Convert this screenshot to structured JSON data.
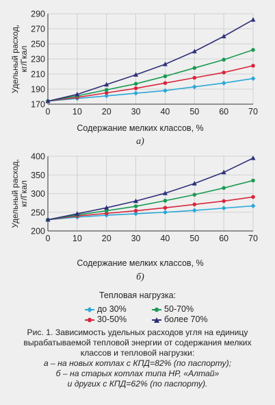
{
  "chart_data": [
    {
      "type": "line",
      "x": [
        0,
        10,
        20,
        30,
        40,
        50,
        60,
        70
      ],
      "xlabel": "Содержание мелких классов, %",
      "ylabel": "Удельный расход, кг/Гкал",
      "ylim": [
        170,
        290
      ],
      "yticks": [
        170,
        190,
        210,
        230,
        250,
        270,
        290
      ],
      "subtitle": "а)",
      "grid": true,
      "series": [
        {
          "name": "до 30%",
          "color": "#2aa7d8",
          "marker": "diamond",
          "values": [
            174,
            177.5,
            181,
            184.5,
            188,
            193,
            198,
            204
          ]
        },
        {
          "name": "30-50%",
          "color": "#d7263d",
          "marker": "circle",
          "values": [
            174,
            179,
            185,
            191,
            198,
            205,
            212,
            221
          ]
        },
        {
          "name": "50-70%",
          "color": "#1a9a52",
          "marker": "circle",
          "values": [
            174,
            181,
            189,
            197,
            207,
            218,
            229,
            242
          ]
        },
        {
          "name": "более 70%",
          "color": "#2e2f7a",
          "marker": "triangle",
          "values": [
            174,
            183,
            196,
            209,
            223,
            240,
            260,
            282
          ]
        }
      ]
    },
    {
      "type": "line",
      "x": [
        0,
        10,
        20,
        30,
        40,
        50,
        60,
        70
      ],
      "xlabel": "Содержание мелких классов, %",
      "ylabel": "Удельный расход, кг/Гкал",
      "ylim": [
        200,
        400
      ],
      "yticks": [
        200,
        250,
        300,
        350,
        400
      ],
      "subtitle": "б)",
      "grid": true,
      "series": [
        {
          "name": "до 30%",
          "color": "#2aa7d8",
          "marker": "diamond",
          "values": [
            230,
            237,
            242,
            246,
            250,
            255,
            261,
            267
          ]
        },
        {
          "name": "30-50%",
          "color": "#d7263d",
          "marker": "circle",
          "values": [
            230,
            240,
            247,
            254,
            262,
            271,
            280,
            291
          ]
        },
        {
          "name": "50-70%",
          "color": "#1a9a52",
          "marker": "circle",
          "values": [
            230,
            243,
            254,
            266,
            281,
            297,
            315,
            335
          ]
        },
        {
          "name": "более 70%",
          "color": "#2e2f7a",
          "marker": "triangle",
          "values": [
            230,
            246,
            262,
            280,
            301,
            327,
            357,
            395
          ]
        }
      ]
    }
  ],
  "legend": {
    "title": "Тепловая нагрузка:",
    "items": [
      "до 30%",
      "50-70%",
      "30-50%",
      "более 70%"
    ]
  },
  "caption": {
    "line1": "Рис. 1. Зависимость удельных расходов угля на единицу",
    "line2": "вырабатываемой тепловой энергии от содержания мелких",
    "line3": "классов и тепловой нагрузки:",
    "line4": "а – на новых котлах с КПД=82% (по паспорту);",
    "line5": "б – на старых котлах типа НР, «Алтай»",
    "line6": "и других с КПД=62% (по паспорту)."
  }
}
